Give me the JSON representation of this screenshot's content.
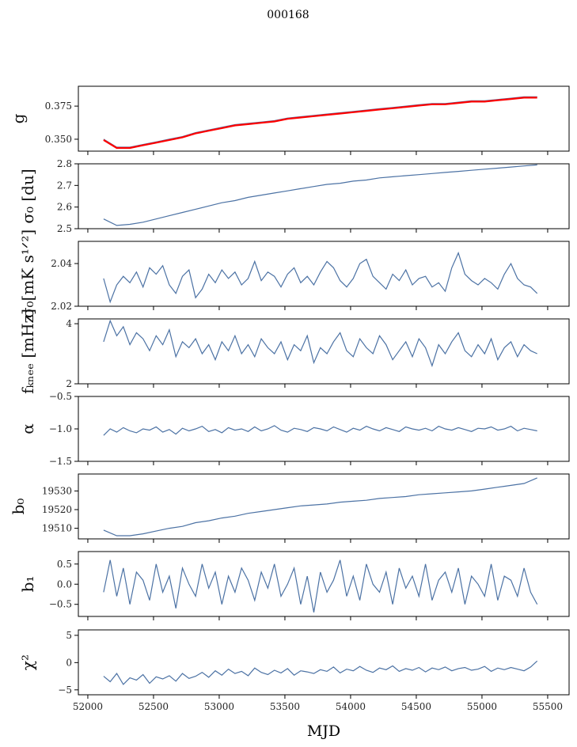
{
  "chart_data": {
    "type": "line",
    "title": "000168",
    "xlabel": "MJD",
    "xlim": [
      51928,
      55663
    ],
    "xticks": [
      52000,
      52500,
      53000,
      53500,
      54000,
      54500,
      55000,
      55500
    ],
    "line_color": "#4c72a4",
    "overlay_color": "#ff0000",
    "panels": [
      {
        "ylabel": "g",
        "ylim": [
          0.341,
          0.39
        ],
        "yticks": [
          0.35,
          0.375
        ],
        "ytick_labels": [
          "0.350",
          "0.375"
        ],
        "x_range": [
          52120,
          55420
        ],
        "values": [
          0.35,
          0.344,
          0.344,
          0.346,
          0.348,
          0.35,
          0.352,
          0.355,
          0.357,
          0.359,
          0.361,
          0.362,
          0.363,
          0.364,
          0.366,
          0.367,
          0.368,
          0.369,
          0.37,
          0.371,
          0.372,
          0.373,
          0.374,
          0.375,
          0.376,
          0.377,
          0.377,
          0.378,
          0.379,
          0.379,
          0.38,
          0.381,
          0.382,
          0.382
        ],
        "overlay": true
      },
      {
        "ylabel": "σ₀ [du]",
        "ylim": [
          2.5,
          2.8
        ],
        "yticks": [
          2.5,
          2.6,
          2.7,
          2.8
        ],
        "ytick_labels": [
          "2.5",
          "2.6",
          "2.7",
          "2.8"
        ],
        "x_range": [
          52120,
          55420
        ],
        "values": [
          2.545,
          2.515,
          2.52,
          2.53,
          2.545,
          2.56,
          2.575,
          2.59,
          2.605,
          2.62,
          2.63,
          2.645,
          2.655,
          2.665,
          2.675,
          2.685,
          2.695,
          2.705,
          2.71,
          2.72,
          2.725,
          2.735,
          2.74,
          2.745,
          2.75,
          2.755,
          2.76,
          2.765,
          2.77,
          2.775,
          2.78,
          2.785,
          2.79,
          2.795
        ]
      },
      {
        "ylabel": "σ₀[mK s¹ᐟ²]",
        "ylim": [
          2.02,
          2.0504
        ],
        "yticks": [
          2.02,
          2.04
        ],
        "ytick_labels": [
          "2.02",
          "2.04"
        ],
        "x_range": [
          52120,
          55420
        ],
        "values": [
          2.033,
          2.022,
          2.03,
          2.034,
          2.031,
          2.036,
          2.029,
          2.038,
          2.035,
          2.039,
          2.03,
          2.026,
          2.034,
          2.037,
          2.024,
          2.028,
          2.035,
          2.031,
          2.037,
          2.033,
          2.036,
          2.03,
          2.033,
          2.041,
          2.032,
          2.036,
          2.034,
          2.029,
          2.035,
          2.038,
          2.031,
          2.034,
          2.03,
          2.036,
          2.041,
          2.038,
          2.032,
          2.029,
          2.033,
          2.04,
          2.042,
          2.034,
          2.031,
          2.028,
          2.035,
          2.032,
          2.037,
          2.03,
          2.033,
          2.034,
          2.029,
          2.031,
          2.027,
          2.038,
          2.045,
          2.035,
          2.032,
          2.03,
          2.033,
          2.031,
          2.028,
          2.035,
          2.04,
          2.033,
          2.03,
          2.029,
          2.026
        ]
      },
      {
        "ylabel": "fₖₙₑₑ [mHz]",
        "ylim": [
          2,
          4.16
        ],
        "yticks": [
          2,
          4
        ],
        "ytick_labels": [
          "2",
          "4"
        ],
        "x_range": [
          52120,
          55420
        ],
        "values": [
          3.4,
          4.1,
          3.6,
          3.9,
          3.3,
          3.7,
          3.5,
          3.1,
          3.6,
          3.3,
          3.8,
          2.9,
          3.4,
          3.2,
          3.5,
          3.0,
          3.3,
          2.8,
          3.4,
          3.1,
          3.6,
          3.0,
          3.3,
          2.9,
          3.5,
          3.2,
          3.0,
          3.4,
          2.8,
          3.3,
          3.1,
          3.6,
          2.7,
          3.2,
          3.0,
          3.4,
          3.7,
          3.1,
          2.9,
          3.5,
          3.2,
          3.0,
          3.6,
          3.3,
          2.8,
          3.1,
          3.4,
          2.9,
          3.5,
          3.2,
          2.6,
          3.3,
          3.0,
          3.4,
          3.7,
          3.1,
          2.9,
          3.3,
          3.0,
          3.5,
          2.8,
          3.2,
          3.4,
          2.9,
          3.3,
          3.1,
          3.0
        ]
      },
      {
        "ylabel": "α",
        "ylim": [
          -1.5,
          -0.5
        ],
        "yticks": [
          -1.5,
          -1.0,
          -0.5
        ],
        "ytick_labels": [
          "−1.5",
          "−1.0",
          "−0.5"
        ],
        "x_range": [
          52120,
          55420
        ],
        "values": [
          -1.1,
          -1.0,
          -1.05,
          -0.98,
          -1.03,
          -1.06,
          -1.0,
          -1.02,
          -0.97,
          -1.05,
          -1.01,
          -1.08,
          -0.99,
          -1.03,
          -1.0,
          -0.96,
          -1.04,
          -1.01,
          -1.06,
          -0.98,
          -1.02,
          -1.0,
          -1.04,
          -0.97,
          -1.03,
          -1.0,
          -0.95,
          -1.02,
          -1.05,
          -0.99,
          -1.01,
          -1.04,
          -0.98,
          -1.0,
          -1.03,
          -0.97,
          -1.01,
          -1.05,
          -0.99,
          -1.02,
          -0.96,
          -1.0,
          -1.03,
          -0.98,
          -1.01,
          -1.04,
          -0.97,
          -1.0,
          -1.02,
          -0.99,
          -1.03,
          -0.96,
          -1.0,
          -1.02,
          -0.98,
          -1.01,
          -1.04,
          -0.99,
          -1.0,
          -0.97,
          -1.02,
          -1.0,
          -0.96,
          -1.03,
          -0.99,
          -1.01,
          -1.03
        ]
      },
      {
        "ylabel": "b₀",
        "ylim": [
          19504.3,
          19539.1
        ],
        "yticks": [
          19510,
          19520,
          19530
        ],
        "ytick_labels": [
          "19510",
          "19520",
          "19530"
        ],
        "x_range": [
          52120,
          55420
        ],
        "values": [
          19509,
          19506,
          19506,
          19507,
          19508.5,
          19510,
          19511,
          19513,
          19514,
          19515.5,
          19516.5,
          19518,
          19519,
          19520,
          19521,
          19522,
          19522.5,
          19523,
          19524,
          19524.5,
          19525,
          19526,
          19526.5,
          19527,
          19528,
          19528.5,
          19529,
          19529.5,
          19530,
          19531,
          19532,
          19533,
          19534,
          19537
        ]
      },
      {
        "ylabel": "b₁",
        "ylim": [
          -0.8,
          0.81
        ],
        "yticks": [
          -0.5,
          0.0,
          0.5
        ],
        "ytick_labels": [
          "−0.5",
          "0.0",
          "0.5"
        ],
        "x_range": [
          52120,
          55420
        ],
        "values": [
          -0.2,
          0.6,
          -0.3,
          0.4,
          -0.5,
          0.3,
          0.1,
          -0.4,
          0.5,
          -0.2,
          0.2,
          -0.6,
          0.4,
          0.0,
          -0.3,
          0.5,
          -0.1,
          0.3,
          -0.5,
          0.2,
          -0.2,
          0.4,
          0.1,
          -0.4,
          0.3,
          -0.1,
          0.5,
          -0.3,
          0.0,
          0.4,
          -0.5,
          0.2,
          -0.7,
          0.3,
          -0.2,
          0.1,
          0.6,
          -0.3,
          0.2,
          -0.4,
          0.5,
          0.0,
          -0.2,
          0.3,
          -0.5,
          0.4,
          -0.1,
          0.2,
          -0.3,
          0.5,
          -0.4,
          0.1,
          0.3,
          -0.2,
          0.4,
          -0.5,
          0.2,
          0.0,
          -0.3,
          0.5,
          -0.4,
          0.2,
          0.1,
          -0.3,
          0.4,
          -0.2,
          -0.5
        ]
      },
      {
        "ylabel": "χ²",
        "ylim": [
          -5.9,
          6.0
        ],
        "yticks": [
          -5,
          0,
          5
        ],
        "ytick_labels": [
          "−5",
          "0",
          "5"
        ],
        "x_range": [
          52120,
          55420
        ],
        "values": [
          -2.5,
          -3.5,
          -2.0,
          -4.0,
          -2.8,
          -3.2,
          -2.2,
          -3.8,
          -2.6,
          -3.0,
          -2.4,
          -3.4,
          -2.0,
          -2.9,
          -2.5,
          -1.8,
          -2.7,
          -1.5,
          -2.3,
          -1.2,
          -2.0,
          -1.6,
          -2.4,
          -1.0,
          -1.8,
          -2.2,
          -1.4,
          -1.9,
          -1.1,
          -2.3,
          -1.5,
          -1.7,
          -2.0,
          -1.3,
          -1.6,
          -0.8,
          -1.9,
          -1.2,
          -1.5,
          -0.7,
          -1.4,
          -1.8,
          -1.0,
          -1.3,
          -0.6,
          -1.6,
          -1.1,
          -1.4,
          -0.9,
          -1.7,
          -1.0,
          -1.3,
          -0.8,
          -1.5,
          -1.1,
          -0.9,
          -1.4,
          -1.2,
          -0.7,
          -1.6,
          -1.0,
          -1.3,
          -0.9,
          -1.2,
          -1.5,
          -0.8,
          0.3
        ]
      }
    ]
  }
}
